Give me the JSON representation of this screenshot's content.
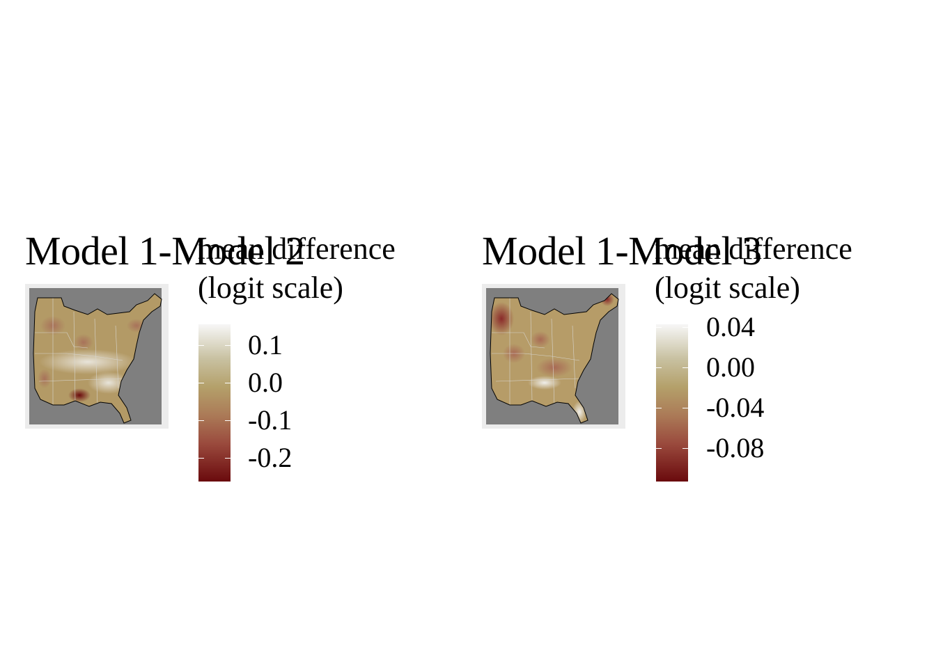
{
  "panels": [
    {
      "title": "Model 1-Model 2",
      "legend_title_line1": "mean difference",
      "legend_title_line2": "(logit scale)",
      "legend_ticks": [
        "0.1",
        "0.0",
        "-0.1",
        "-0.2"
      ],
      "legend_values": [
        0.1,
        0.0,
        -0.1,
        -0.2
      ],
      "legend_range": [
        -0.265,
        0.14
      ]
    },
    {
      "title": "Model 1-Model 3",
      "legend_title_line1": "mean difference",
      "legend_title_line2": "(logit scale)",
      "legend_ticks": [
        "0.04",
        "0.00",
        "-0.04",
        "-0.08"
      ],
      "legend_values": [
        0.04,
        0.0,
        -0.04,
        -0.08
      ],
      "legend_range": [
        -0.111,
        0.044
      ]
    }
  ],
  "colors": {
    "high": "#f7f7f7",
    "mid": "#b4a06a",
    "low": "#6a0a0d",
    "ocean": "#7f7f7f",
    "frame": "#ececec"
  }
}
